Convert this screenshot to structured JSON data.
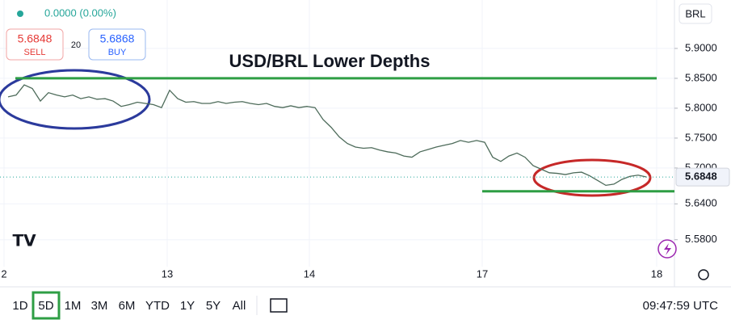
{
  "header": {
    "change": "0.0000 (0.00%)",
    "sell_price": "5.6848",
    "sell_label": "SELL",
    "spread": "20",
    "buy_price": "5.6868",
    "buy_label": "BUY"
  },
  "currency": "BRL",
  "chart_data": {
    "type": "line",
    "title": "USD/BRL Lower Depths",
    "color": "#4d6b5a",
    "x": [
      0,
      1,
      2,
      3,
      4,
      5,
      6,
      7,
      8,
      9,
      10,
      11,
      12,
      13,
      14,
      15,
      16,
      17,
      18,
      19,
      20,
      21,
      22,
      23,
      24,
      25,
      26,
      27,
      28,
      29,
      30,
      31,
      32,
      33,
      34,
      35,
      36,
      37,
      38,
      39,
      40,
      41,
      42,
      43,
      44,
      45,
      46,
      47,
      48,
      49,
      50,
      51,
      52,
      53,
      54,
      55,
      56,
      57,
      58,
      59,
      60,
      61,
      62,
      63,
      64,
      65,
      66,
      67,
      68,
      69,
      70,
      71,
      72,
      73,
      74,
      75,
      76,
      77,
      78,
      79
    ],
    "values": [
      5.819,
      5.822,
      5.839,
      5.833,
      5.812,
      5.826,
      5.822,
      5.819,
      5.822,
      5.816,
      5.819,
      5.815,
      5.816,
      5.812,
      5.803,
      5.806,
      5.81,
      5.808,
      5.806,
      5.801,
      5.83,
      5.816,
      5.81,
      5.811,
      5.808,
      5.808,
      5.811,
      5.808,
      5.81,
      5.811,
      5.808,
      5.806,
      5.808,
      5.803,
      5.801,
      5.804,
      5.801,
      5.803,
      5.801,
      5.781,
      5.768,
      5.752,
      5.741,
      5.735,
      5.733,
      5.734,
      5.73,
      5.727,
      5.725,
      5.72,
      5.718,
      5.727,
      5.731,
      5.735,
      5.738,
      5.741,
      5.746,
      5.743,
      5.746,
      5.743,
      5.718,
      5.711,
      5.72,
      5.725,
      5.718,
      5.704,
      5.698,
      5.692,
      5.691,
      5.689,
      5.692,
      5.693,
      5.687,
      5.679,
      5.671,
      5.673,
      5.681,
      5.686,
      5.688,
      5.685
    ],
    "xlim": [
      -1,
      82.5
    ],
    "xticks": [
      {
        "value": -0.5,
        "label": "2"
      },
      {
        "value": 19.7,
        "label": "13"
      },
      {
        "value": 37.3,
        "label": "14"
      },
      {
        "value": 58.7,
        "label": "17"
      },
      {
        "value": 80.3,
        "label": "18"
      }
    ],
    "ylim": [
      5.535,
      5.981
    ],
    "yticks": [
      {
        "value": 5.9,
        "label": "5.9000"
      },
      {
        "value": 5.85,
        "label": "5.8500"
      },
      {
        "value": 5.8,
        "label": "5.8000"
      },
      {
        "value": 5.75,
        "label": "5.7500"
      },
      {
        "value": 5.7,
        "label": "5.7000"
      },
      {
        "value": 5.64,
        "label": "5.6400"
      },
      {
        "value": 5.58,
        "label": "5.5800"
      }
    ],
    "grid": true,
    "last_price": {
      "value": 5.6848,
      "label": "5.6848"
    },
    "levels": [
      {
        "value": 5.85,
        "from": 0.9,
        "to": 80.3,
        "color": "#2e9e44"
      },
      {
        "value": 5.661,
        "from": 58.7,
        "to": 82.5,
        "color": "#2e9e44"
      }
    ]
  },
  "toolbar": {
    "ranges": [
      "1D",
      "5D",
      "1M",
      "3M",
      "6M",
      "YTD",
      "1Y",
      "5Y",
      "All"
    ],
    "time": "09:47:59 UTC"
  }
}
